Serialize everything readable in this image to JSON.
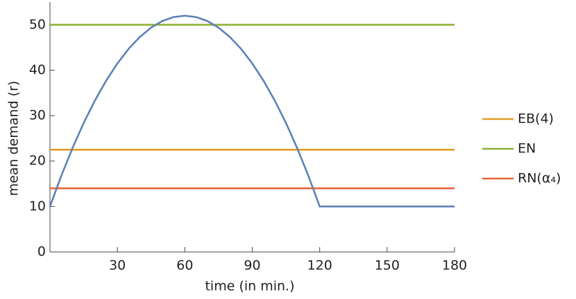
{
  "chart_data": {
    "type": "line",
    "x_label": "time (in min.)",
    "y_label": "mean demand (r)",
    "xlim": [
      0,
      180
    ],
    "xticks": [
      30,
      60,
      90,
      120,
      150,
      180
    ],
    "ylim": [
      0,
      55
    ],
    "yticks": [
      0,
      10,
      20,
      30,
      40,
      50
    ],
    "legend": "right",
    "series": [
      {
        "color": "#5e81b5",
        "x": [
          0,
          5,
          10,
          15,
          20,
          25,
          30,
          35,
          40,
          45,
          50,
          55,
          60,
          65,
          70,
          75,
          80,
          85,
          90,
          95,
          100,
          105,
          110,
          115,
          120,
          180
        ],
        "values": [
          10,
          16.71,
          22.83,
          28.38,
          33.33,
          37.71,
          41.5,
          44.71,
          47.33,
          49.38,
          50.83,
          51.71,
          52,
          51.71,
          50.83,
          49.38,
          47.33,
          44.71,
          41.5,
          37.71,
          33.33,
          28.38,
          22.83,
          16.71,
          10,
          10
        ]
      },
      {
        "name": "EB(4)",
        "color": "#e19c24",
        "x": [
          0,
          180
        ],
        "values": [
          22.5,
          22.5
        ]
      },
      {
        "name": "EN",
        "color": "#8fb032",
        "x": [
          0,
          180
        ],
        "values": [
          50,
          50
        ]
      },
      {
        "name": "RN(α₄)",
        "color": "#eb6235",
        "x": [
          0,
          180
        ],
        "values": [
          14,
          14
        ]
      }
    ]
  }
}
